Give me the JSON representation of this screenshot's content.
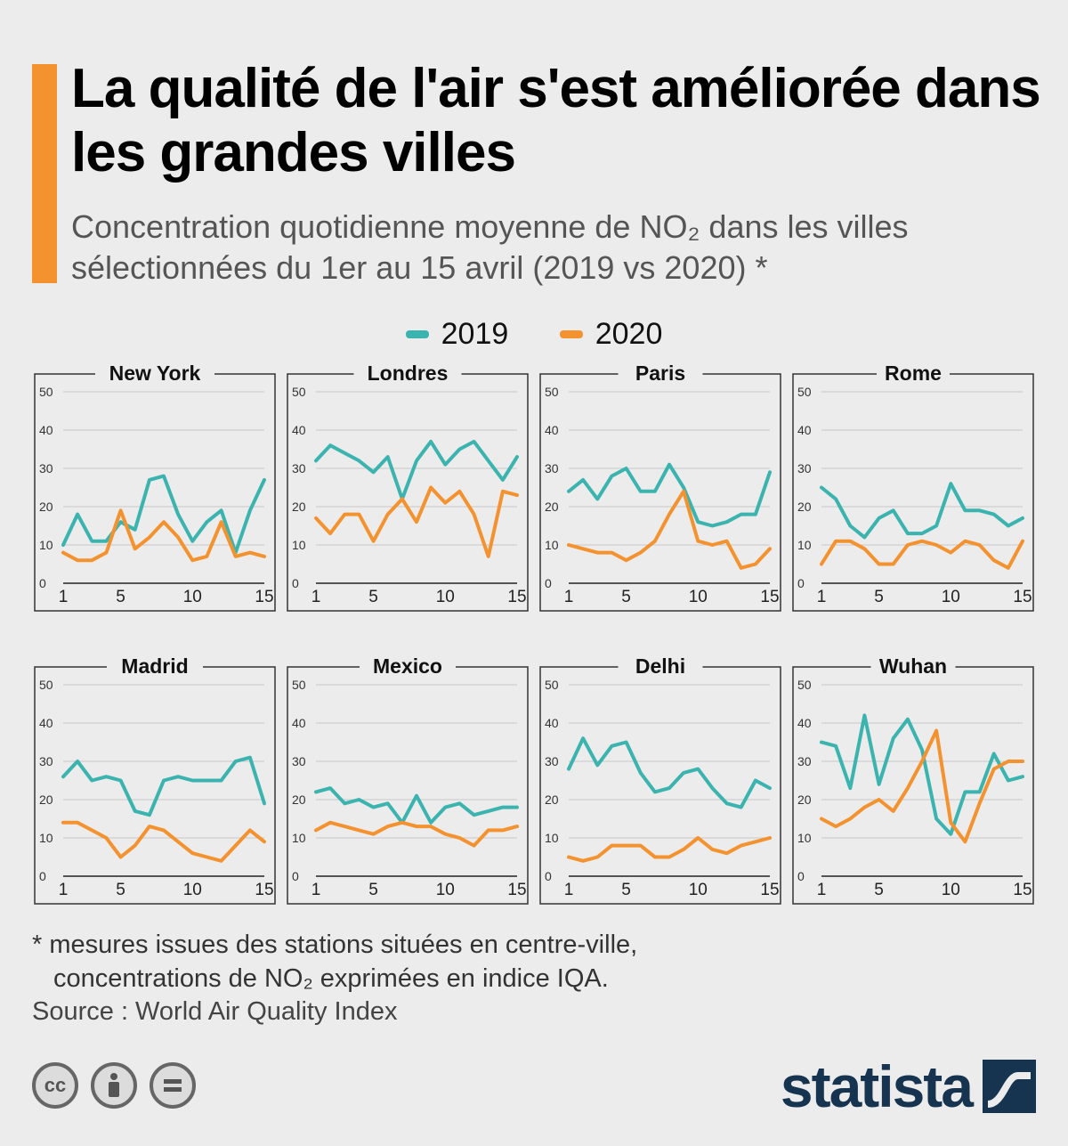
{
  "title": "La qualité de l'air s'est améliorée dans les grandes villes",
  "subtitle_line1": "Concentration quotidienne moyenne de NO₂ dans les villes",
  "subtitle_line2": "sélectionnées du 1er au 15 avril (2019 vs 2020) *",
  "legend": [
    {
      "label": "2019",
      "color": "#3bb3ae"
    },
    {
      "label": "2020",
      "color": "#f3922f"
    }
  ],
  "footnote_line1": "* mesures issues des stations situées en centre-ville,",
  "footnote_line2": "concentrations de NO₂ exprimées en indice IQA.",
  "source": "Source : World Air Quality Index",
  "license_icons": [
    "cc-icon",
    "attribution-icon",
    "no-derivatives-icon"
  ],
  "brand": "statista",
  "colors": {
    "series2019": "#3bb3ae",
    "series2020": "#f3922f",
    "frame": "#333333",
    "grid": "#c8c8c8"
  },
  "chart_data": [
    {
      "type": "line",
      "title": "New York",
      "x": [
        1,
        2,
        3,
        4,
        5,
        6,
        7,
        8,
        9,
        10,
        11,
        12,
        13,
        14,
        15
      ],
      "x_ticks": [
        1,
        5,
        10,
        15
      ],
      "y_ticks": [
        0,
        10,
        20,
        30,
        40,
        50
      ],
      "ylim": [
        0,
        50
      ],
      "series": [
        {
          "name": "2019",
          "values": [
            10,
            18,
            11,
            11,
            16,
            14,
            27,
            28,
            18,
            11,
            16,
            19,
            8,
            19,
            27
          ]
        },
        {
          "name": "2020",
          "values": [
            8,
            6,
            6,
            8,
            19,
            9,
            12,
            16,
            12,
            6,
            7,
            16,
            7,
            8,
            7
          ]
        }
      ]
    },
    {
      "type": "line",
      "title": "Londres",
      "x": [
        1,
        2,
        3,
        4,
        5,
        6,
        7,
        8,
        9,
        10,
        11,
        12,
        13,
        14,
        15
      ],
      "x_ticks": [
        1,
        5,
        10,
        15
      ],
      "y_ticks": [
        0,
        10,
        20,
        30,
        40,
        50
      ],
      "ylim": [
        0,
        50
      ],
      "series": [
        {
          "name": "2019",
          "values": [
            32,
            36,
            34,
            32,
            29,
            33,
            22,
            32,
            37,
            31,
            35,
            37,
            32,
            27,
            33
          ]
        },
        {
          "name": "2020",
          "values": [
            17,
            13,
            18,
            18,
            11,
            18,
            22,
            16,
            25,
            21,
            24,
            18,
            7,
            24,
            23
          ]
        }
      ]
    },
    {
      "type": "line",
      "title": "Paris",
      "x": [
        1,
        2,
        3,
        4,
        5,
        6,
        7,
        8,
        9,
        10,
        11,
        12,
        13,
        14,
        15
      ],
      "x_ticks": [
        1,
        5,
        10,
        15
      ],
      "y_ticks": [
        0,
        10,
        20,
        30,
        40,
        50
      ],
      "ylim": [
        0,
        50
      ],
      "series": [
        {
          "name": "2019",
          "values": [
            24,
            27,
            22,
            28,
            30,
            24,
            24,
            31,
            25,
            16,
            15,
            16,
            18,
            18,
            29
          ]
        },
        {
          "name": "2020",
          "values": [
            10,
            9,
            8,
            8,
            6,
            8,
            11,
            18,
            24,
            11,
            10,
            11,
            4,
            5,
            9
          ]
        }
      ]
    },
    {
      "type": "line",
      "title": "Rome",
      "x": [
        1,
        2,
        3,
        4,
        5,
        6,
        7,
        8,
        9,
        10,
        11,
        12,
        13,
        14,
        15
      ],
      "x_ticks": [
        1,
        5,
        10,
        15
      ],
      "y_ticks": [
        0,
        10,
        20,
        30,
        40,
        50
      ],
      "ylim": [
        0,
        50
      ],
      "series": [
        {
          "name": "2019",
          "values": [
            25,
            22,
            15,
            12,
            17,
            19,
            13,
            13,
            15,
            26,
            19,
            19,
            18,
            15,
            17
          ]
        },
        {
          "name": "2020",
          "values": [
            5,
            11,
            11,
            9,
            5,
            5,
            10,
            11,
            10,
            8,
            11,
            10,
            6,
            4,
            11
          ]
        }
      ]
    },
    {
      "type": "line",
      "title": "Madrid",
      "x": [
        1,
        2,
        3,
        4,
        5,
        6,
        7,
        8,
        9,
        10,
        11,
        12,
        13,
        14,
        15
      ],
      "x_ticks": [
        1,
        5,
        10,
        15
      ],
      "y_ticks": [
        0,
        10,
        20,
        30,
        40,
        50
      ],
      "ylim": [
        0,
        50
      ],
      "series": [
        {
          "name": "2019",
          "values": [
            26,
            30,
            25,
            26,
            25,
            17,
            16,
            25,
            26,
            25,
            25,
            25,
            30,
            31,
            19
          ]
        },
        {
          "name": "2020",
          "values": [
            14,
            14,
            12,
            10,
            5,
            8,
            13,
            12,
            9,
            6,
            5,
            4,
            8,
            12,
            9
          ]
        }
      ]
    },
    {
      "type": "line",
      "title": "Mexico",
      "x": [
        1,
        2,
        3,
        4,
        5,
        6,
        7,
        8,
        9,
        10,
        11,
        12,
        13,
        14,
        15
      ],
      "x_ticks": [
        1,
        5,
        10,
        15
      ],
      "y_ticks": [
        0,
        10,
        20,
        30,
        40,
        50
      ],
      "ylim": [
        0,
        50
      ],
      "series": [
        {
          "name": "2019",
          "values": [
            22,
            23,
            19,
            20,
            18,
            19,
            14,
            21,
            14,
            18,
            19,
            16,
            17,
            18,
            18
          ]
        },
        {
          "name": "2020",
          "values": [
            12,
            14,
            13,
            12,
            11,
            13,
            14,
            13,
            13,
            11,
            10,
            8,
            12,
            12,
            13
          ]
        }
      ]
    },
    {
      "type": "line",
      "title": "Delhi",
      "x": [
        1,
        2,
        3,
        4,
        5,
        6,
        7,
        8,
        9,
        10,
        11,
        12,
        13,
        14,
        15
      ],
      "x_ticks": [
        1,
        5,
        10,
        15
      ],
      "y_ticks": [
        0,
        10,
        20,
        30,
        40,
        50
      ],
      "ylim": [
        0,
        50
      ],
      "series": [
        {
          "name": "2019",
          "values": [
            28,
            36,
            29,
            34,
            35,
            27,
            22,
            23,
            27,
            28,
            23,
            19,
            18,
            25,
            23
          ]
        },
        {
          "name": "2020",
          "values": [
            5,
            4,
            5,
            8,
            8,
            8,
            5,
            5,
            7,
            10,
            7,
            6,
            8,
            9,
            10
          ]
        }
      ]
    },
    {
      "type": "line",
      "title": "Wuhan",
      "x": [
        1,
        2,
        3,
        4,
        5,
        6,
        7,
        8,
        9,
        10,
        11,
        12,
        13,
        14,
        15
      ],
      "x_ticks": [
        1,
        5,
        10,
        15
      ],
      "y_ticks": [
        0,
        10,
        20,
        30,
        40,
        50
      ],
      "ylim": [
        0,
        50
      ],
      "series": [
        {
          "name": "2019",
          "values": [
            35,
            34,
            23,
            42,
            24,
            36,
            41,
            33,
            15,
            11,
            22,
            22,
            32,
            25,
            26
          ]
        },
        {
          "name": "2020",
          "values": [
            15,
            13,
            15,
            18,
            20,
            17,
            23,
            30,
            38,
            14,
            9,
            19,
            28,
            30,
            30
          ]
        }
      ]
    }
  ]
}
